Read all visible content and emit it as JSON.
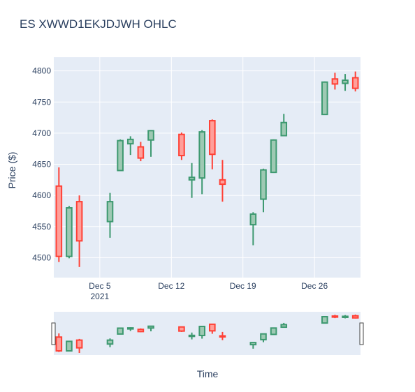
{
  "chart_data": {
    "type": "candlestick",
    "title": "ES XWWD1EKJDJWH OHLC",
    "xlabel": "Time",
    "ylabel": "Price ($)",
    "ylim": [
      4468,
      4822
    ],
    "yticks": [
      4500,
      4550,
      4600,
      4650,
      4700,
      4750,
      4800
    ],
    "xlim": [
      "2021-11-30T12:00",
      "2021-12-30T12:00"
    ],
    "xticks": [
      {
        "date": "2021-12-05",
        "label": "Dec 5",
        "sublabel": "2021"
      },
      {
        "date": "2021-12-12",
        "label": "Dec 12",
        "sublabel": ""
      },
      {
        "date": "2021-12-19",
        "label": "Dec 19",
        "sublabel": ""
      },
      {
        "date": "2021-12-26",
        "label": "Dec 26",
        "sublabel": ""
      }
    ],
    "colors": {
      "increasing": "#3d9970",
      "decreasing": "#ff4136",
      "increasing_fill": "#9ec9b3",
      "decreasing_fill": "#ff9f9a",
      "plot_bg": "#e5ecf6",
      "grid": "#ffffff"
    },
    "rangeslider": true,
    "series": [
      {
        "date": "2021-12-01",
        "open": 4615,
        "high": 4645,
        "low": 4493,
        "close": 4502
      },
      {
        "date": "2021-12-02",
        "open": 4502,
        "high": 4583,
        "low": 4499,
        "close": 4580
      },
      {
        "date": "2021-12-03",
        "open": 4590,
        "high": 4600,
        "low": 4485,
        "close": 4527
      },
      {
        "date": "2021-12-06",
        "open": 4558,
        "high": 4604,
        "low": 4532,
        "close": 4590
      },
      {
        "date": "2021-12-07",
        "open": 4640,
        "high": 4690,
        "low": 4640,
        "close": 4688
      },
      {
        "date": "2021-12-08",
        "open": 4683,
        "high": 4695,
        "low": 4665,
        "close": 4690
      },
      {
        "date": "2021-12-09",
        "open": 4678,
        "high": 4686,
        "low": 4655,
        "close": 4660
      },
      {
        "date": "2021-12-10",
        "open": 4689,
        "high": 4705,
        "low": 4662,
        "close": 4704
      },
      {
        "date": "2021-12-13",
        "open": 4698,
        "high": 4701,
        "low": 4657,
        "close": 4664
      },
      {
        "date": "2021-12-14",
        "open": 4625,
        "high": 4652,
        "low": 4596,
        "close": 4629
      },
      {
        "date": "2021-12-15",
        "open": 4628,
        "high": 4705,
        "low": 4602,
        "close": 4702
      },
      {
        "date": "2021-12-16",
        "open": 4720,
        "high": 4722,
        "low": 4642,
        "close": 4666
      },
      {
        "date": "2021-12-17",
        "open": 4625,
        "high": 4657,
        "low": 4590,
        "close": 4618
      },
      {
        "date": "2021-12-20",
        "open": 4553,
        "high": 4573,
        "low": 4520,
        "close": 4570
      },
      {
        "date": "2021-12-21",
        "open": 4594,
        "high": 4643,
        "low": 4573,
        "close": 4641
      },
      {
        "date": "2021-12-22",
        "open": 4637,
        "high": 4690,
        "low": 4636,
        "close": 4689
      },
      {
        "date": "2021-12-23",
        "open": 4696,
        "high": 4731,
        "low": 4696,
        "close": 4717
      },
      {
        "date": "2021-12-27",
        "open": 4730,
        "high": 4783,
        "low": 4730,
        "close": 4782
      },
      {
        "date": "2021-12-28",
        "open": 4787,
        "high": 4797,
        "low": 4770,
        "close": 4779
      },
      {
        "date": "2021-12-29",
        "open": 4780,
        "high": 4795,
        "low": 4768,
        "close": 4785
      },
      {
        "date": "2021-12-30",
        "open": 4789,
        "high": 4799,
        "low": 4767,
        "close": 4772
      }
    ]
  }
}
